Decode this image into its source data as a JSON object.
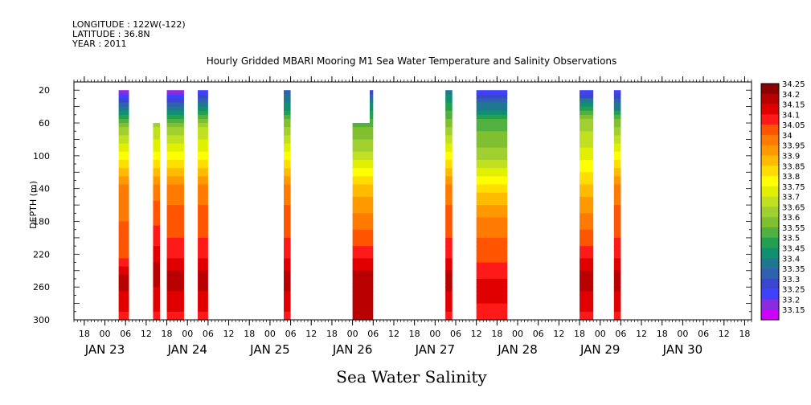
{
  "header": {
    "longitude": "LONGITUDE : 122W(-122)",
    "latitude": "LATITUDE : 36.8N",
    "year": "YEAR : 2011"
  },
  "chart_data": {
    "type": "heatmap",
    "title": "Hourly Gridded MBARI Mooring M1 Sea Water Temperature and Salinity Observations",
    "xlabel": "Sea Water Salinity",
    "ylabel": "DEPTH (m)",
    "ylim": [
      300,
      10
    ],
    "y_ticks": [
      20,
      60,
      100,
      140,
      180,
      220,
      260,
      300
    ],
    "x_time_range": [
      "2011-01-22T15:00",
      "2011-01-30T20:00"
    ],
    "x_hour_ticks": [
      {
        "t": "2011-01-22T18:00",
        "label": "18"
      },
      {
        "t": "2011-01-23T00:00",
        "label": "00"
      },
      {
        "t": "2011-01-23T06:00",
        "label": "06"
      },
      {
        "t": "2011-01-23T12:00",
        "label": "12"
      },
      {
        "t": "2011-01-23T18:00",
        "label": "18"
      },
      {
        "t": "2011-01-24T00:00",
        "label": "00"
      },
      {
        "t": "2011-01-24T06:00",
        "label": "06"
      },
      {
        "t": "2011-01-24T12:00",
        "label": "12"
      },
      {
        "t": "2011-01-24T18:00",
        "label": "18"
      },
      {
        "t": "2011-01-25T00:00",
        "label": "00"
      },
      {
        "t": "2011-01-25T06:00",
        "label": "06"
      },
      {
        "t": "2011-01-25T12:00",
        "label": "12"
      },
      {
        "t": "2011-01-25T18:00",
        "label": "18"
      },
      {
        "t": "2011-01-26T00:00",
        "label": "00"
      },
      {
        "t": "2011-01-26T06:00",
        "label": "06"
      },
      {
        "t": "2011-01-26T12:00",
        "label": "12"
      },
      {
        "t": "2011-01-26T18:00",
        "label": "18"
      },
      {
        "t": "2011-01-27T00:00",
        "label": "00"
      },
      {
        "t": "2011-01-27T06:00",
        "label": "06"
      },
      {
        "t": "2011-01-27T12:00",
        "label": "12"
      },
      {
        "t": "2011-01-27T18:00",
        "label": "18"
      },
      {
        "t": "2011-01-28T00:00",
        "label": "00"
      },
      {
        "t": "2011-01-28T06:00",
        "label": "06"
      },
      {
        "t": "2011-01-28T12:00",
        "label": "12"
      },
      {
        "t": "2011-01-28T18:00",
        "label": "18"
      },
      {
        "t": "2011-01-29T00:00",
        "label": "00"
      },
      {
        "t": "2011-01-29T06:00",
        "label": "06"
      },
      {
        "t": "2011-01-29T12:00",
        "label": "12"
      },
      {
        "t": "2011-01-29T18:00",
        "label": "18"
      },
      {
        "t": "2011-01-30T00:00",
        "label": "00"
      },
      {
        "t": "2011-01-30T06:00",
        "label": "06"
      },
      {
        "t": "2011-01-30T12:00",
        "label": "12"
      },
      {
        "t": "2011-01-30T18:00",
        "label": "18"
      }
    ],
    "x_day_labels": [
      {
        "t": "2011-01-23T00:00",
        "label": "JAN 23"
      },
      {
        "t": "2011-01-24T00:00",
        "label": "JAN 24"
      },
      {
        "t": "2011-01-25T00:00",
        "label": "JAN 25"
      },
      {
        "t": "2011-01-26T00:00",
        "label": "JAN 26"
      },
      {
        "t": "2011-01-27T00:00",
        "label": "JAN 27"
      },
      {
        "t": "2011-01-28T00:00",
        "label": "JAN 28"
      },
      {
        "t": "2011-01-29T00:00",
        "label": "JAN 29"
      },
      {
        "t": "2011-01-30T00:00",
        "label": "JAN 30"
      }
    ],
    "colorbar": {
      "levels": [
        "34.25",
        "34.2",
        "34.15",
        "34.1",
        "34.05",
        "34",
        "33.95",
        "33.9",
        "33.85",
        "33.8",
        "33.75",
        "33.7",
        "33.65",
        "33.6",
        "33.55",
        "33.5",
        "33.45",
        "33.4",
        "33.35",
        "33.3",
        "33.25",
        "33.2",
        "33.15"
      ],
      "colors": [
        "#8b0000",
        "#b80000",
        "#e00000",
        "#ff1a1a",
        "#ff5500",
        "#ff7a00",
        "#ff9900",
        "#ffbb00",
        "#ffdd00",
        "#ffff00",
        "#e0f000",
        "#c0e020",
        "#a0d030",
        "#80c030",
        "#50b040",
        "#20a050",
        "#109070",
        "#207890",
        "#3060b0",
        "#3a45d0",
        "#4040ff",
        "#8a2be2",
        "#cc00ff"
      ]
    },
    "observations": [
      {
        "start": "2011-01-23T04:00",
        "end": "2011-01-23T07:00",
        "top": 20,
        "profile": [
          [
            20,
            33.2
          ],
          [
            40,
            33.35
          ],
          [
            60,
            33.6
          ],
          [
            100,
            33.8
          ],
          [
            140,
            34.0
          ],
          [
            220,
            34.05
          ],
          [
            250,
            34.2
          ],
          [
            280,
            34.15
          ],
          [
            300,
            34.1
          ]
        ]
      },
      {
        "start": "2011-01-23T14:00",
        "end": "2011-01-23T16:00",
        "top": 60,
        "profile": [
          [
            60,
            33.65
          ],
          [
            100,
            33.8
          ],
          [
            140,
            34.0
          ],
          [
            200,
            34.1
          ],
          [
            240,
            34.2
          ],
          [
            280,
            34.15
          ],
          [
            300,
            34.1
          ]
        ]
      },
      {
        "start": "2011-01-23T18:00",
        "end": "2011-01-23T23:00",
        "top": 20,
        "profile": [
          [
            20,
            33.2
          ],
          [
            40,
            33.35
          ],
          [
            60,
            33.6
          ],
          [
            100,
            33.8
          ],
          [
            140,
            34.0
          ],
          [
            220,
            34.1
          ],
          [
            250,
            34.2
          ],
          [
            280,
            34.15
          ],
          [
            300,
            34.1
          ]
        ]
      },
      {
        "start": "2011-01-24T03:00",
        "end": "2011-01-24T06:00",
        "top": 20,
        "profile": [
          [
            20,
            33.2
          ],
          [
            40,
            33.4
          ],
          [
            60,
            33.65
          ],
          [
            100,
            33.8
          ],
          [
            140,
            34.0
          ],
          [
            220,
            34.1
          ],
          [
            250,
            34.2
          ],
          [
            280,
            34.15
          ],
          [
            300,
            34.1
          ]
        ]
      },
      {
        "start": "2011-01-25T04:00",
        "end": "2011-01-25T06:00",
        "top": 20,
        "profile": [
          [
            20,
            33.35
          ],
          [
            40,
            33.45
          ],
          [
            60,
            33.6
          ],
          [
            100,
            33.8
          ],
          [
            140,
            34.0
          ],
          [
            220,
            34.1
          ],
          [
            250,
            34.2
          ],
          [
            280,
            34.15
          ],
          [
            300,
            34.1
          ]
        ]
      },
      {
        "start": "2011-01-26T00:00",
        "end": "2011-01-26T05:00",
        "top": 60,
        "profile": [
          [
            60,
            33.55
          ],
          [
            100,
            33.7
          ],
          [
            140,
            33.9
          ],
          [
            180,
            34.0
          ],
          [
            220,
            34.1
          ],
          [
            250,
            34.2
          ],
          [
            300,
            34.2
          ]
        ]
      },
      {
        "start": "2011-01-26T05:00",
        "end": "2011-01-26T06:00",
        "top": 20,
        "profile": [
          [
            20,
            33.3
          ],
          [
            40,
            33.45
          ],
          [
            60,
            33.55
          ],
          [
            100,
            33.7
          ],
          [
            140,
            33.9
          ],
          [
            180,
            34.0
          ],
          [
            220,
            34.1
          ],
          [
            250,
            34.2
          ],
          [
            300,
            34.2
          ]
        ]
      },
      {
        "start": "2011-01-27T03:00",
        "end": "2011-01-27T05:00",
        "top": 20,
        "profile": [
          [
            20,
            33.4
          ],
          [
            40,
            33.5
          ],
          [
            60,
            33.6
          ],
          [
            100,
            33.8
          ],
          [
            140,
            34.0
          ],
          [
            220,
            34.1
          ],
          [
            250,
            34.2
          ],
          [
            280,
            34.15
          ],
          [
            300,
            34.1
          ]
        ]
      },
      {
        "start": "2011-01-27T12:00",
        "end": "2011-01-27T21:00",
        "top": 20,
        "profile": [
          [
            20,
            33.2
          ],
          [
            40,
            33.4
          ],
          [
            60,
            33.55
          ],
          [
            100,
            33.65
          ],
          [
            140,
            33.85
          ],
          [
            180,
            34.0
          ],
          [
            220,
            34.05
          ],
          [
            260,
            34.15
          ],
          [
            300,
            34.1
          ]
        ]
      },
      {
        "start": "2011-01-28T18:00",
        "end": "2011-01-28T22:00",
        "top": 20,
        "profile": [
          [
            20,
            33.2
          ],
          [
            40,
            33.5
          ],
          [
            60,
            33.65
          ],
          [
            100,
            33.75
          ],
          [
            140,
            33.9
          ],
          [
            180,
            34.0
          ],
          [
            220,
            34.1
          ],
          [
            250,
            34.2
          ],
          [
            280,
            34.15
          ],
          [
            300,
            34.1
          ]
        ]
      },
      {
        "start": "2011-01-29T04:00",
        "end": "2011-01-29T06:00",
        "top": 20,
        "profile": [
          [
            20,
            33.25
          ],
          [
            40,
            33.4
          ],
          [
            60,
            33.6
          ],
          [
            100,
            33.8
          ],
          [
            140,
            34.0
          ],
          [
            220,
            34.1
          ],
          [
            250,
            34.2
          ],
          [
            280,
            34.15
          ],
          [
            300,
            34.1
          ]
        ]
      }
    ]
  }
}
